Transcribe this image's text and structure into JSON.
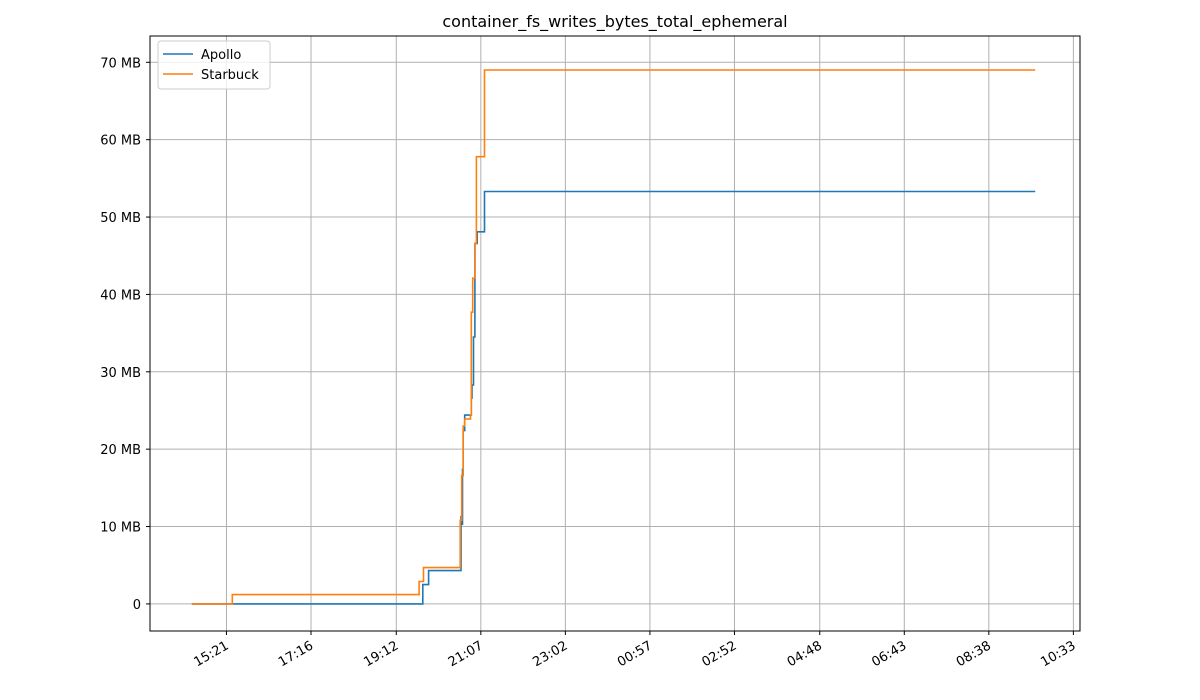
{
  "chart_data": {
    "type": "line",
    "title": "container_fs_writes_bytes_total_ephemeral",
    "xlabel": "",
    "ylabel": "",
    "x_ticks": [
      "15:21",
      "17:16",
      "19:12",
      "21:07",
      "23:02",
      "00:57",
      "02:52",
      "04:48",
      "06:43",
      "08:38",
      "10:33"
    ],
    "x_tick_offsets_min": [
      0,
      115,
      231,
      346,
      461,
      576,
      691,
      807,
      922,
      1037,
      1152
    ],
    "x_range_min": [
      -104,
      1161
    ],
    "y_ticks": [
      0,
      10,
      20,
      30,
      40,
      50,
      60,
      70
    ],
    "y_tick_labels": [
      "0",
      "10 MB",
      "20 MB",
      "30 MB",
      "40 MB",
      "50 MB",
      "60 MB",
      "70 MB"
    ],
    "ylim": [
      -3.5,
      73.4
    ],
    "y_unit": "MB",
    "grid": true,
    "legend_position": "top-left",
    "series": [
      {
        "name": "Apollo",
        "color": "#1f77b4",
        "x_min": [
          -47,
          7,
          7,
          267,
          267,
          275,
          275,
          319,
          319,
          320,
          320,
          321,
          321,
          322,
          322,
          324,
          324,
          333,
          333,
          334,
          334,
          336,
          336,
          338,
          338,
          340,
          340,
          341,
          341,
          346,
          346,
          351,
          351,
          1100
        ],
        "y": [
          0,
          0,
          0,
          0,
          2.5,
          2.5,
          4.3,
          4.3,
          11.3,
          11.3,
          10.3,
          10.3,
          17.4,
          17.4,
          22.4,
          22.4,
          24.4,
          24.4,
          26.6,
          26.6,
          28.3,
          28.3,
          34.5,
          34.5,
          46.6,
          46.6,
          46.6,
          46.6,
          48.1,
          48.1,
          48.1,
          48.1,
          53.3,
          53.3
        ]
      },
      {
        "name": "Starbuck",
        "color": "#ff7f0e",
        "x_min": [
          -47,
          8,
          8,
          262,
          262,
          268,
          268,
          318,
          318,
          320,
          320,
          322,
          322,
          324,
          324,
          332,
          332,
          333,
          333,
          335,
          335,
          338,
          338,
          340,
          340,
          345,
          345,
          351,
          351,
          1100
        ],
        "y": [
          0,
          0,
          1.2,
          1.2,
          2.9,
          2.9,
          4.7,
          4.7,
          10.8,
          10.8,
          16.6,
          16.6,
          23.0,
          23.0,
          23.9,
          23.9,
          24.4,
          24.4,
          37.7,
          37.7,
          42.1,
          42.1,
          46.6,
          46.6,
          57.8,
          57.8,
          57.8,
          57.8,
          69.0,
          69.0
        ]
      }
    ]
  }
}
